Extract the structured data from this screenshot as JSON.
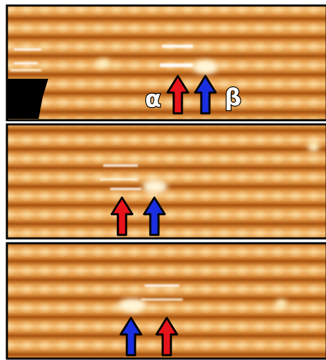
{
  "labels": {
    "alpha": "α",
    "beta": "β"
  }
}
